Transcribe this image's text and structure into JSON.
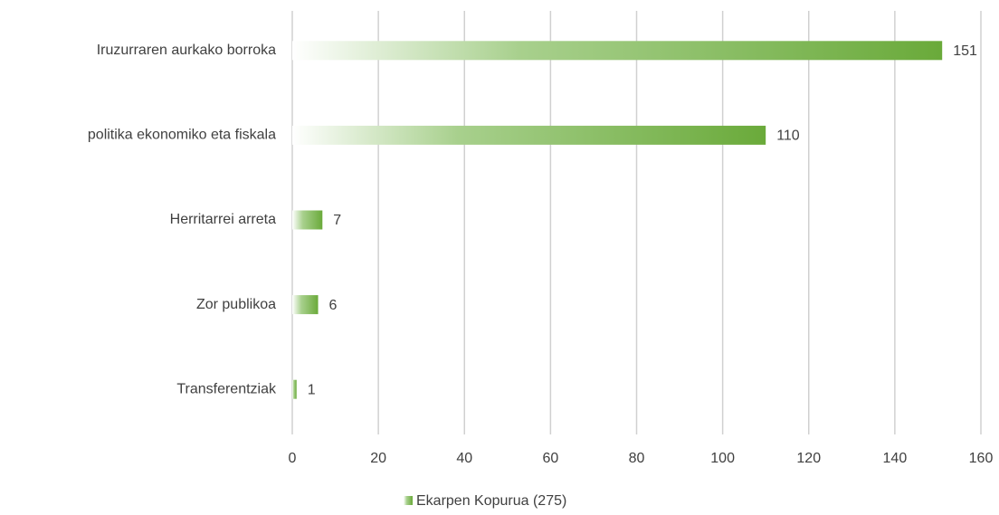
{
  "chart_data": {
    "type": "barh",
    "categories": [
      "Iruzurraren aurkako borroka",
      "politika ekonomiko eta fiskala",
      "Herritarrei arreta",
      "Zor publikoa",
      "Transferentziak"
    ],
    "series": [
      {
        "name": "Ekarpen Kopurua (275)",
        "color": "#6aaa3a",
        "values": [
          151,
          110,
          7,
          6,
          1
        ]
      }
    ],
    "xlim": [
      0,
      160
    ],
    "xticks": [
      0,
      20,
      40,
      60,
      80,
      100,
      120,
      140,
      160
    ],
    "grid": true,
    "legend": "bottom"
  }
}
